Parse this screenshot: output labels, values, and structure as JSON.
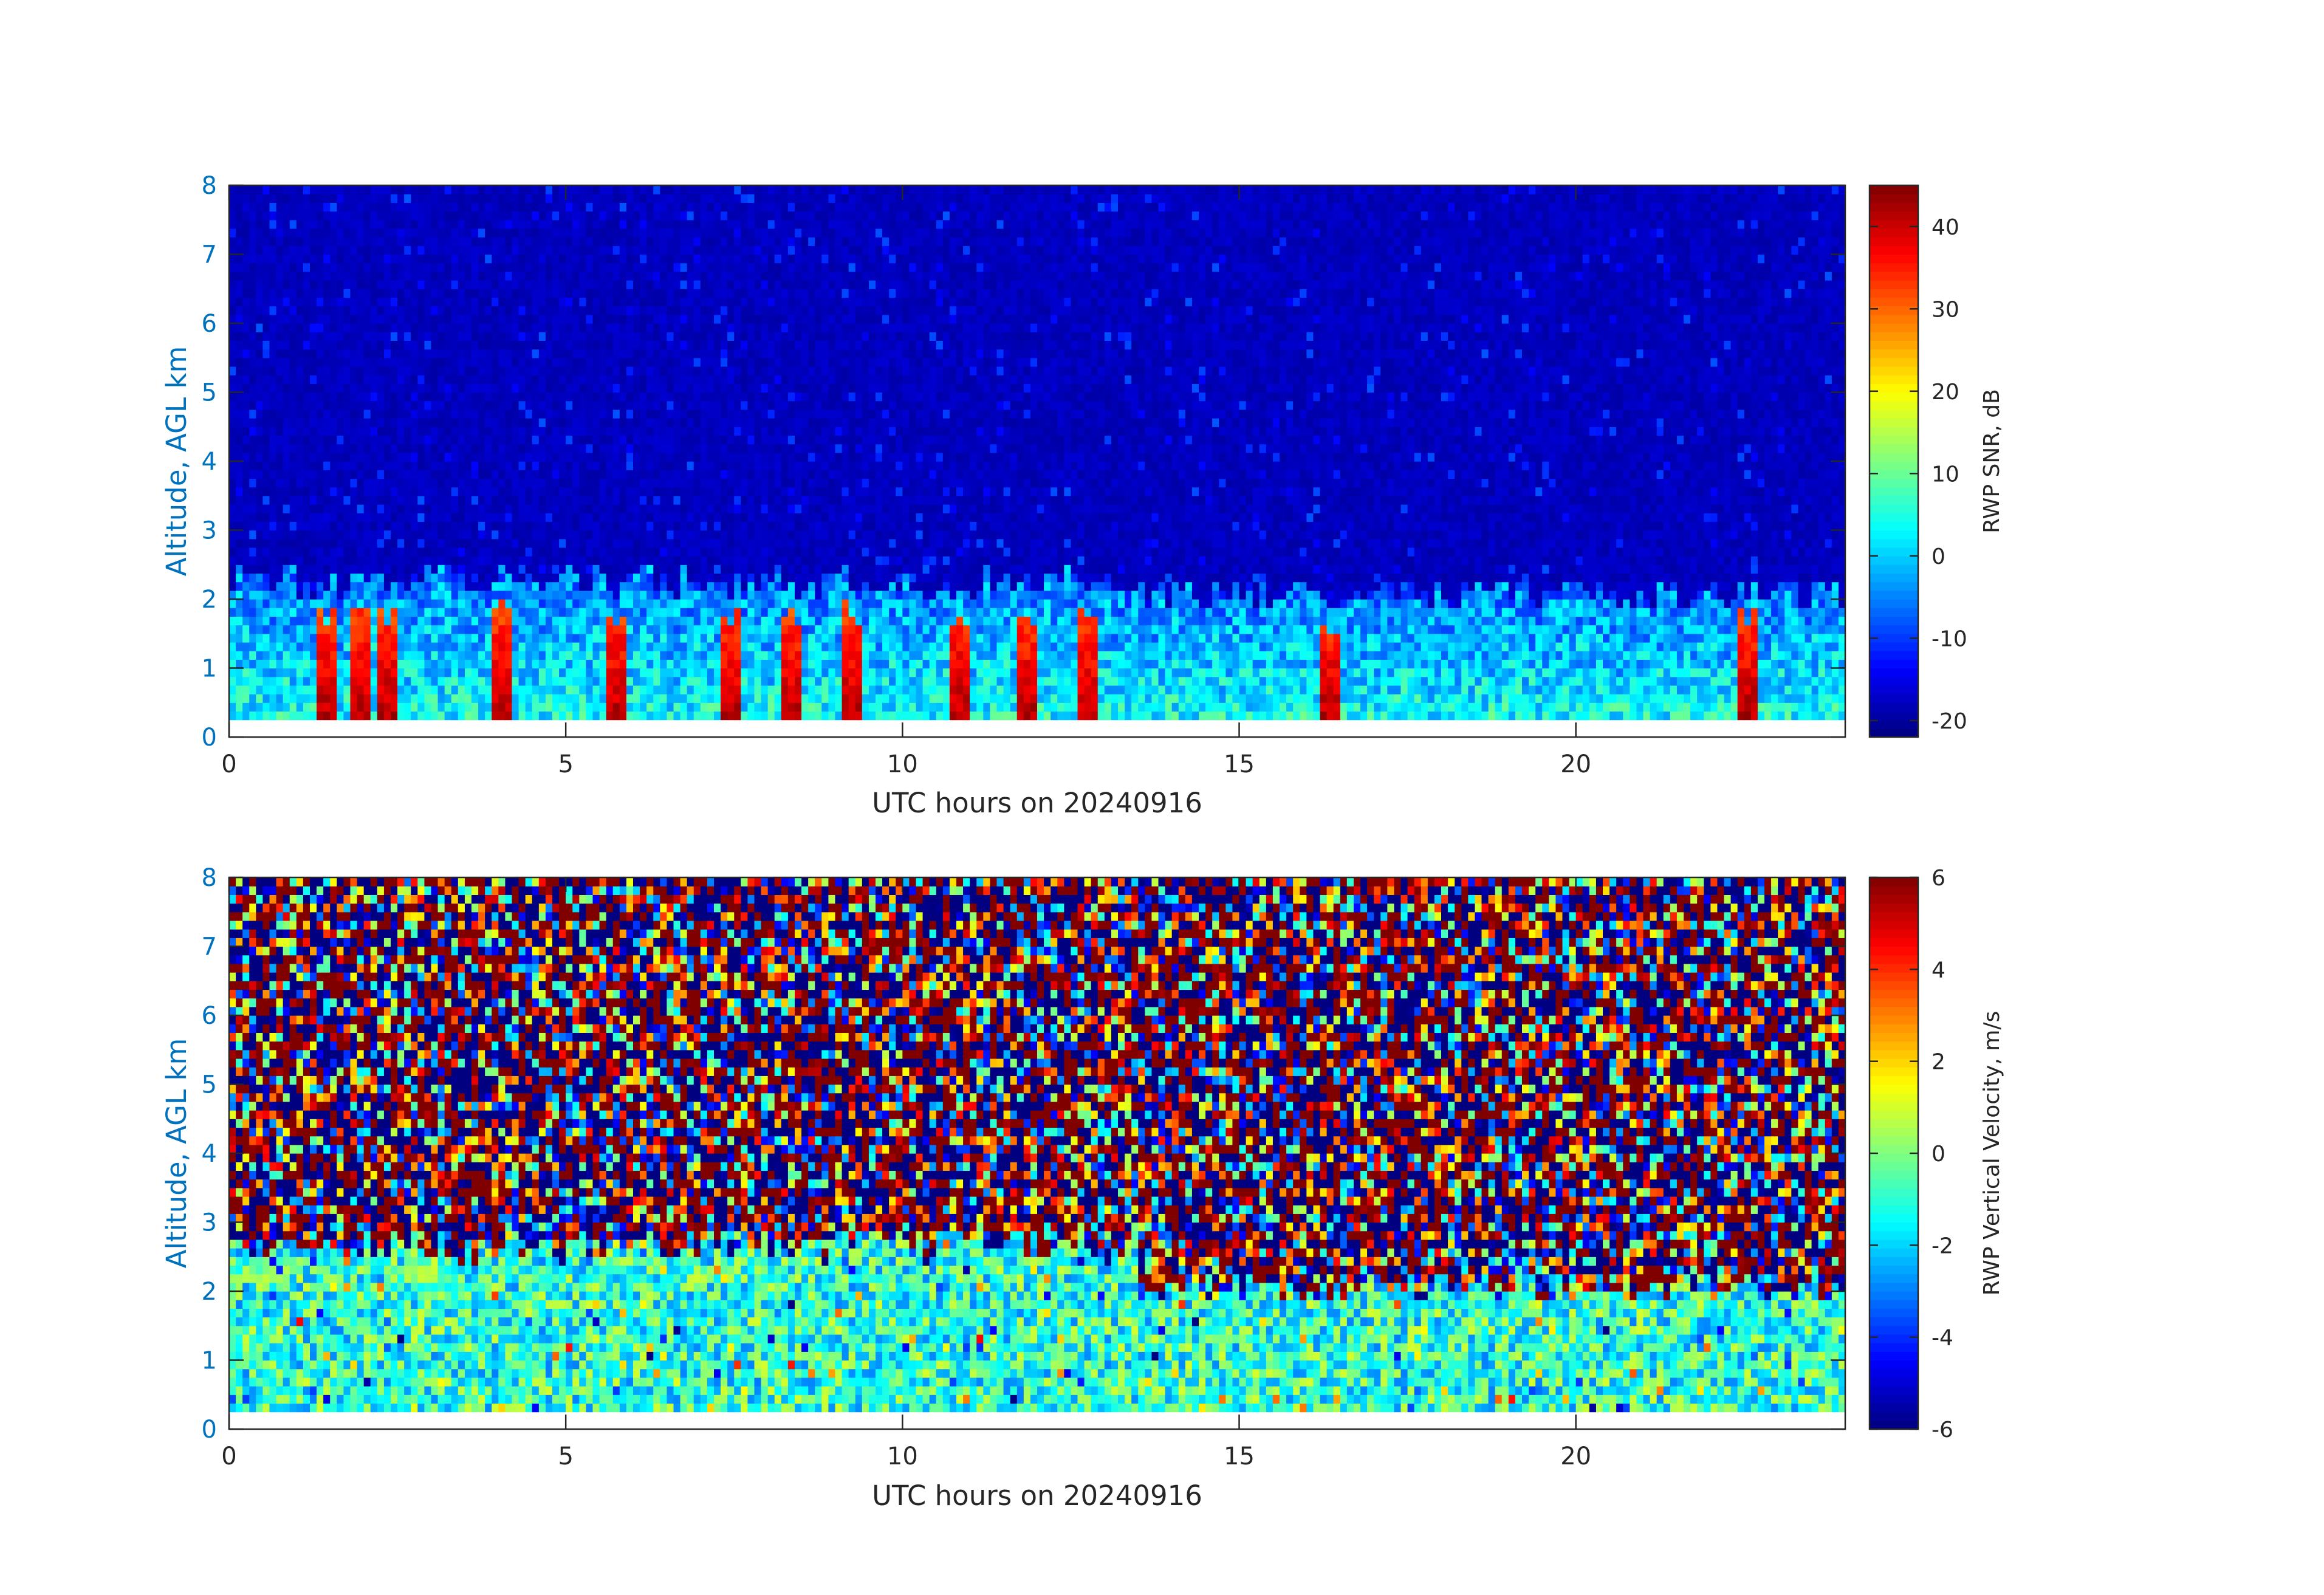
{
  "chart_data": [
    {
      "type": "heatmap",
      "title": "",
      "xlabel": "UTC hours on 20240916",
      "ylabel": "Altitude, AGL km",
      "xlim": [
        0,
        24
      ],
      "ylim": [
        0,
        8
      ],
      "x_ticks": [
        0,
        5,
        10,
        15,
        20
      ],
      "y_ticks": [
        0,
        1,
        2,
        3,
        4,
        5,
        6,
        7,
        8
      ],
      "data_y_range_km": [
        0.25,
        8
      ],
      "colormap": "jet",
      "colorbar": {
        "label": "RWP SNR, dB",
        "range": [
          -22,
          45
        ],
        "ticks": [
          -20,
          -10,
          0,
          10,
          20,
          30,
          40
        ]
      },
      "description_values": {
        "upper_background_db": -18,
        "boundary_layer_top_km_0_to_13h": 2.2,
        "boundary_layer_top_km_13_to_24h": 2.0,
        "boundary_layer_typical_db": 5,
        "peak_values_db": 40
      },
      "colors": {
        "axis_label": "#0072BD",
        "axes": "#262626"
      }
    },
    {
      "type": "heatmap",
      "title": "",
      "xlabel": "UTC hours on 20240916",
      "ylabel": "Altitude, AGL km",
      "xlim": [
        0,
        24
      ],
      "ylim": [
        0,
        8
      ],
      "x_ticks": [
        0,
        5,
        10,
        15,
        20
      ],
      "y_ticks": [
        0,
        1,
        2,
        3,
        4,
        5,
        6,
        7,
        8
      ],
      "data_y_range_km": [
        0.25,
        8
      ],
      "colormap": "jet",
      "colorbar": {
        "label": "RWP Vertical Velocity, m/s",
        "range": [
          -6,
          6
        ],
        "ticks": [
          -6,
          -4,
          -2,
          0,
          2,
          4,
          6
        ]
      },
      "description_values": {
        "upper_noise_range_ms": [
          -6,
          6
        ],
        "boundary_layer_top_km_0_to_13h": 2.6,
        "boundary_layer_top_km_13_to_24h": 2.0,
        "boundary_layer_typical_ms": [
          -3,
          1
        ]
      },
      "colors": {
        "axis_label": "#0072BD",
        "axes": "#262626"
      }
    }
  ]
}
